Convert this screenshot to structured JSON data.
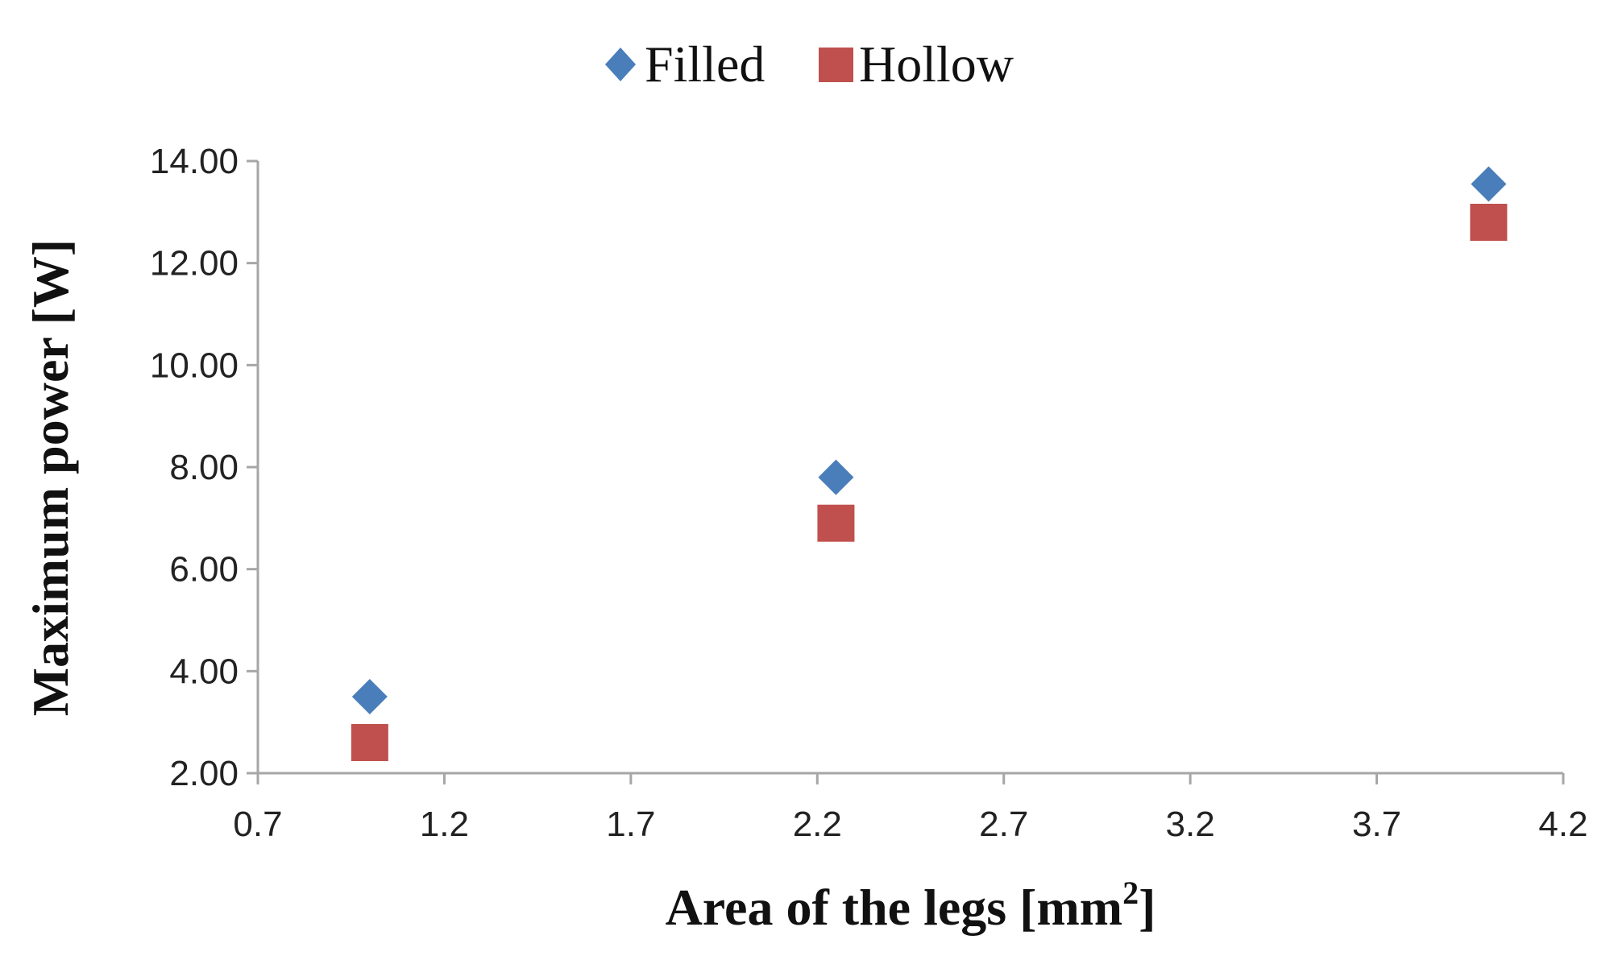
{
  "chart_data": {
    "type": "scatter",
    "xlabel_main": "Area of the legs [mm",
    "xlabel_sup": "2",
    "xlabel_end": "]",
    "ylabel": "Maximum power [W]",
    "xlim": [
      0.7,
      4.2
    ],
    "ylim": [
      2.0,
      14.0
    ],
    "x_ticks": [
      "0.7",
      "1.2",
      "1.7",
      "2.2",
      "2.7",
      "3.2",
      "3.7",
      "4.2"
    ],
    "y_ticks": [
      "2.00",
      "4.00",
      "6.00",
      "8.00",
      "10.00",
      "12.00",
      "14.00"
    ],
    "grid": false,
    "legend_position": "top-center",
    "series": [
      {
        "name": "Filled",
        "marker": "diamond",
        "color": "#4a7ebb",
        "x": [
          1.0,
          2.25,
          4.0
        ],
        "y": [
          3.5,
          7.8,
          13.55
        ]
      },
      {
        "name": "Hollow",
        "marker": "square",
        "color": "#c0504d",
        "x": [
          1.0,
          2.25,
          4.0
        ],
        "y": [
          2.6,
          6.9,
          12.8
        ]
      }
    ]
  }
}
